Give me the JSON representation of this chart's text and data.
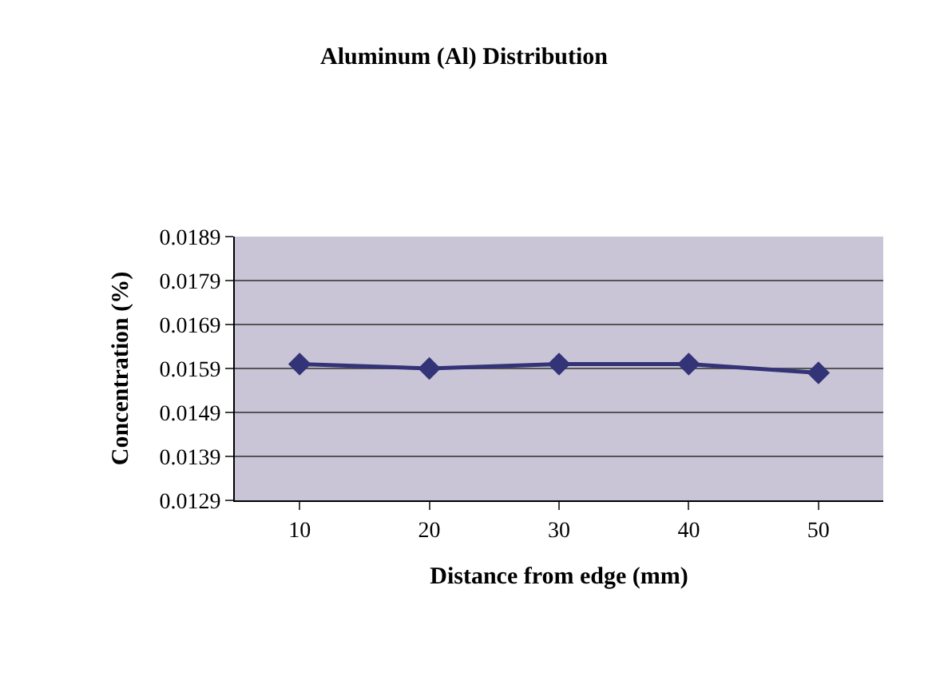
{
  "chart_data": {
    "type": "line",
    "title": "Aluminum (Al) Distribution",
    "xlabel": "Distance from edge (mm)",
    "ylabel": "Concentration (%)",
    "categories": [
      "10",
      "20",
      "30",
      "40",
      "50"
    ],
    "series": [
      {
        "color": "#333377",
        "values": [
          0.016,
          0.0159,
          0.016,
          0.016,
          0.0158
        ]
      }
    ],
    "ylim": [
      0.0129,
      0.0189
    ],
    "yticks": [
      0.0129,
      0.0139,
      0.0149,
      0.0159,
      0.0169,
      0.0179,
      0.0189
    ],
    "grid": "y",
    "legend": false,
    "marker": "diamond",
    "line_style": "solid"
  }
}
